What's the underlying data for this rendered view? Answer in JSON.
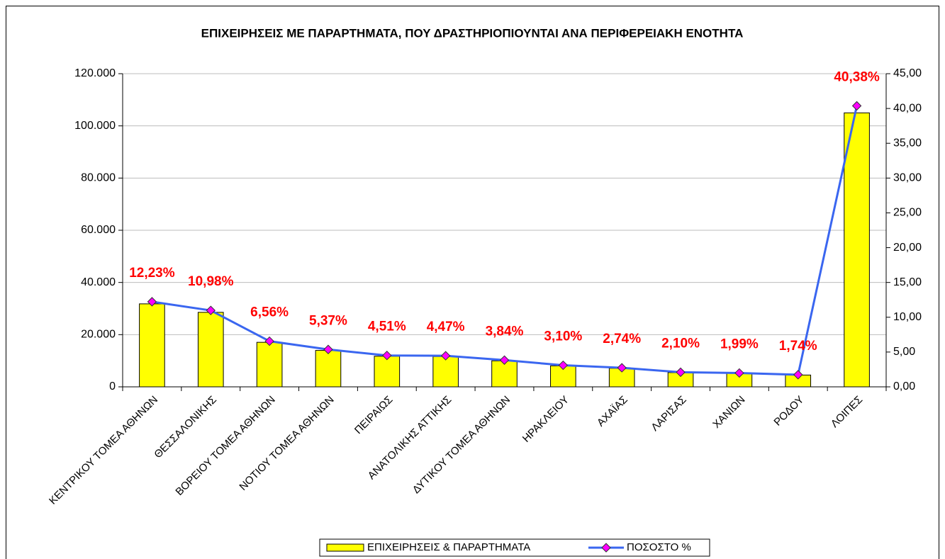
{
  "chart_data": {
    "type": "bar_line",
    "title": "ΕΠΙΧΕΙΡΗΣΕΙΣ ΜΕ ΠΑΡΑΡΤΗΜΑΤΑ, ΠΟΥ ΔΡΑΣΤΗΡΙΟΠΙΟΥΝΤΑΙ ΑΝΑ ΠΕΡΙΦΕΡΕΙΑΚΗ ΕΝΟΤΗΤΑ",
    "categories": [
      "ΚΕΝΤΡΙΚΟΥ ΤΟΜΕΑ ΑΘΗΝΩΝ",
      "ΘΕΣΣΑΛΟΝΙΚΗΣ",
      "ΒΟΡΕΙΟΥ ΤΟΜΕΑ ΑΘΗΝΩΝ",
      "ΝΟΤΙΟΥ ΤΟΜΕΑ ΑΘΗΝΩΝ",
      "ΠΕΙΡΑΙΩΣ",
      "ΑΝΑΤΟΛΙΚΗΣ ΑΤΤΙΚΗΣ",
      "ΔΥΤΙΚΟΥ ΤΟΜΕΑ ΑΘΗΝΩΝ",
      "ΗΡΑΚΛΕΙΟΥ",
      "ΑΧΑΪΑΣ",
      "ΛΑΡΙΣΑΣ",
      "ΧΑΝΙΩΝ",
      "ΡΟΔΟΥ",
      "ΛΟΙΠΕΣ"
    ],
    "series": [
      {
        "name": "ΕΠΙΧΕΙΡΗΣΕΙΣ & ΠΑΡΑΡΤΗΜΑΤΑ",
        "type": "bar",
        "color": "#ffff00",
        "values": [
          31800,
          28550,
          17060,
          13960,
          11730,
          11620,
          9980,
          8060,
          7120,
          5460,
          5170,
          4520,
          104990
        ]
      },
      {
        "name": "ΠΟΣΟΣΤΟ %",
        "type": "line",
        "axis": "y2",
        "color": "#3a66f0",
        "marker_color": "#ff00ff",
        "values": [
          12.23,
          10.98,
          6.56,
          5.37,
          4.51,
          4.47,
          3.84,
          3.1,
          2.74,
          2.1,
          1.99,
          1.74,
          40.38
        ],
        "value_labels": [
          "12,23%",
          "10,98%",
          "6,56%",
          "5,37%",
          "4,51%",
          "4,47%",
          "3,84%",
          "3,10%",
          "2,74%",
          "2,10%",
          "1,99%",
          "1,74%",
          "40,38%"
        ]
      }
    ],
    "ylim": [
      0,
      120000
    ],
    "yticks": [
      {
        "value": 0,
        "label": "0"
      },
      {
        "value": 20000,
        "label": "20.000"
      },
      {
        "value": 40000,
        "label": "40.000"
      },
      {
        "value": 60000,
        "label": "60.000"
      },
      {
        "value": 80000,
        "label": "80.000"
      },
      {
        "value": 100000,
        "label": "100.000"
      },
      {
        "value": 120000,
        "label": "120.000"
      }
    ],
    "y2lim": [
      0,
      45
    ],
    "y2ticks": [
      {
        "value": 0,
        "label": "0,00"
      },
      {
        "value": 5,
        "label": "5,00"
      },
      {
        "value": 10,
        "label": "10,00"
      },
      {
        "value": 15,
        "label": "15,00"
      },
      {
        "value": 20,
        "label": "20,00"
      },
      {
        "value": 25,
        "label": "25,00"
      },
      {
        "value": 30,
        "label": "30,00"
      },
      {
        "value": 35,
        "label": "35,00"
      },
      {
        "value": 40,
        "label": "40,00"
      },
      {
        "value": 45,
        "label": "45,00"
      }
    ],
    "grid": true,
    "legend": "bottom"
  }
}
